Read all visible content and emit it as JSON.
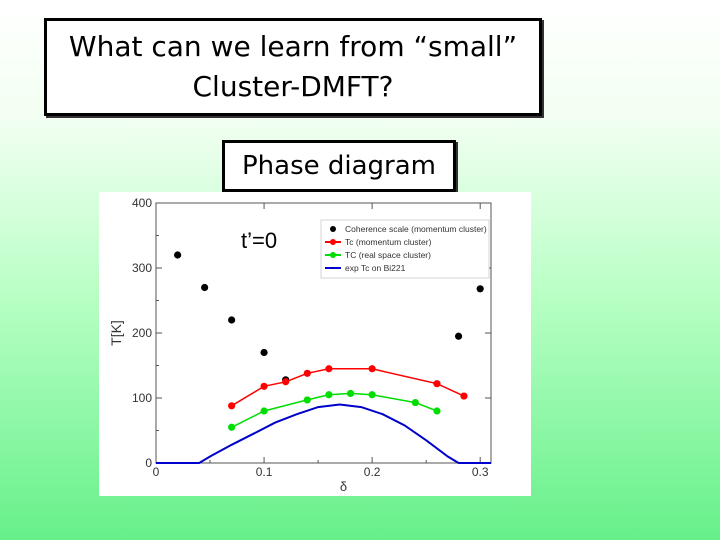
{
  "slide": {
    "title_line1": "What can we learn from “small”",
    "title_line2": "Cluster-DMFT?",
    "subtitle": "Phase diagram"
  },
  "chart_data": {
    "type": "scatter",
    "annotation": "t’=0",
    "xlabel": "δ",
    "ylabel": "T[K]",
    "xlim": [
      0,
      0.31
    ],
    "ylim": [
      0,
      400
    ],
    "xticks": [
      0,
      0.1,
      0.2,
      0.3
    ],
    "xtick_labels": [
      "0",
      "0.1",
      "0.2",
      "0.3"
    ],
    "yticks": [
      0,
      100,
      200,
      300,
      400
    ],
    "ytick_labels": [
      "0",
      "100",
      "200",
      "300",
      "400"
    ],
    "grid": false,
    "legend_position": "top-right",
    "series": [
      {
        "name": "Coherence scale (momentum cluster)",
        "style": "points",
        "color": "#000000",
        "points": [
          [
            0.02,
            320
          ],
          [
            0.045,
            270
          ],
          [
            0.07,
            220
          ],
          [
            0.1,
            170
          ],
          [
            0.12,
            128
          ],
          [
            0.28,
            195
          ],
          [
            0.3,
            268
          ]
        ]
      },
      {
        "name": "Tc (momentum cluster)",
        "style": "line-points",
        "color": "#ff0000",
        "points": [
          [
            0.07,
            88
          ],
          [
            0.1,
            118
          ],
          [
            0.12,
            125
          ],
          [
            0.14,
            138
          ],
          [
            0.16,
            145
          ],
          [
            0.2,
            145
          ],
          [
            0.26,
            122
          ],
          [
            0.285,
            103
          ]
        ]
      },
      {
        "name": "TC (real space cluster)",
        "style": "line-points",
        "color": "#00dd00",
        "points": [
          [
            0.07,
            55
          ],
          [
            0.1,
            80
          ],
          [
            0.14,
            97
          ],
          [
            0.16,
            105
          ],
          [
            0.18,
            107
          ],
          [
            0.2,
            105
          ],
          [
            0.24,
            93
          ],
          [
            0.26,
            80
          ]
        ]
      },
      {
        "name": "exp Tc on Bi221",
        "style": "line",
        "color": "#0000cc",
        "points": [
          [
            0,
            0
          ],
          [
            0.04,
            0
          ],
          [
            0.05,
            10
          ],
          [
            0.07,
            28
          ],
          [
            0.09,
            45
          ],
          [
            0.11,
            62
          ],
          [
            0.13,
            75
          ],
          [
            0.15,
            86
          ],
          [
            0.17,
            90
          ],
          [
            0.19,
            86
          ],
          [
            0.21,
            75
          ],
          [
            0.23,
            58
          ],
          [
            0.25,
            35
          ],
          [
            0.27,
            10
          ],
          [
            0.28,
            0
          ],
          [
            0.31,
            0
          ]
        ]
      }
    ]
  }
}
